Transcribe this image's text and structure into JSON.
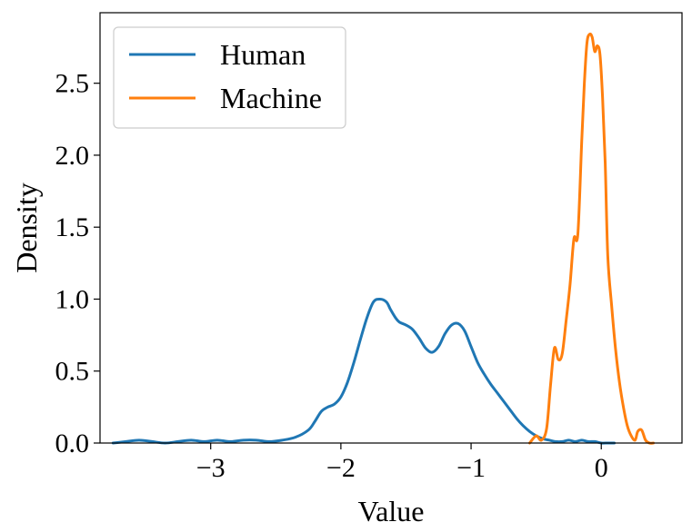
{
  "chart_data": {
    "type": "line",
    "title": "",
    "xlabel": "Value",
    "ylabel": "Density",
    "xlim": [
      -3.85,
      0.62
    ],
    "ylim": [
      0,
      2.99
    ],
    "xticks": [
      -3,
      -2,
      -1,
      0
    ],
    "xtick_labels": [
      "−3",
      "−2",
      "−1",
      "0"
    ],
    "yticks": [
      0,
      0.5,
      1,
      1.5,
      2,
      2.5
    ],
    "ytick_labels": [
      "0.0",
      "0.5",
      "1.0",
      "1.5",
      "2.0",
      "2.5"
    ],
    "grid": false,
    "legend_position": "top-left",
    "series": [
      {
        "name": "Human",
        "color": "#1f77b4",
        "x": [
          -3.75,
          -3.65,
          -3.55,
          -3.45,
          -3.35,
          -3.25,
          -3.15,
          -3.05,
          -2.95,
          -2.85,
          -2.75,
          -2.65,
          -2.55,
          -2.45,
          -2.35,
          -2.25,
          -2.2,
          -2.15,
          -2.1,
          -2.05,
          -2.0,
          -1.95,
          -1.9,
          -1.85,
          -1.8,
          -1.75,
          -1.7,
          -1.65,
          -1.62,
          -1.58,
          -1.55,
          -1.5,
          -1.45,
          -1.4,
          -1.35,
          -1.3,
          -1.25,
          -1.2,
          -1.15,
          -1.1,
          -1.05,
          -1.0,
          -0.95,
          -0.9,
          -0.85,
          -0.8,
          -0.75,
          -0.7,
          -0.65,
          -0.6,
          -0.55,
          -0.5,
          -0.45,
          -0.4,
          -0.35,
          -0.3,
          -0.25,
          -0.2,
          -0.15,
          -0.1,
          -0.05,
          0.0,
          0.05,
          0.1
        ],
        "y": [
          0.0,
          0.01,
          0.02,
          0.01,
          0.0,
          0.01,
          0.02,
          0.01,
          0.02,
          0.01,
          0.02,
          0.02,
          0.01,
          0.02,
          0.04,
          0.09,
          0.15,
          0.22,
          0.25,
          0.27,
          0.32,
          0.42,
          0.56,
          0.72,
          0.87,
          0.98,
          1.0,
          0.98,
          0.93,
          0.87,
          0.84,
          0.82,
          0.79,
          0.73,
          0.66,
          0.63,
          0.67,
          0.76,
          0.82,
          0.83,
          0.78,
          0.67,
          0.56,
          0.48,
          0.41,
          0.35,
          0.29,
          0.23,
          0.17,
          0.12,
          0.08,
          0.05,
          0.03,
          0.02,
          0.01,
          0.01,
          0.02,
          0.01,
          0.02,
          0.01,
          0.01,
          0.0,
          0.0,
          0.0
        ]
      },
      {
        "name": "Machine",
        "color": "#ff7f0e",
        "x": [
          -0.55,
          -0.5,
          -0.46,
          -0.42,
          -0.39,
          -0.36,
          -0.33,
          -0.3,
          -0.27,
          -0.24,
          -0.21,
          -0.18,
          -0.15,
          -0.13,
          -0.11,
          -0.09,
          -0.07,
          -0.05,
          -0.03,
          -0.01,
          0.01,
          0.03,
          0.05,
          0.08,
          0.11,
          0.14,
          0.17,
          0.2,
          0.23,
          0.26,
          0.28,
          0.31,
          0.34,
          0.37,
          0.4
        ],
        "y": [
          0.0,
          0.05,
          0.02,
          0.1,
          0.4,
          0.66,
          0.58,
          0.62,
          0.85,
          1.1,
          1.42,
          1.45,
          2.1,
          2.5,
          2.78,
          2.84,
          2.82,
          2.72,
          2.76,
          2.7,
          2.4,
          1.95,
          1.3,
          0.95,
          0.65,
          0.42,
          0.25,
          0.12,
          0.05,
          0.02,
          0.08,
          0.09,
          0.02,
          0.0,
          0.0
        ]
      }
    ]
  }
}
